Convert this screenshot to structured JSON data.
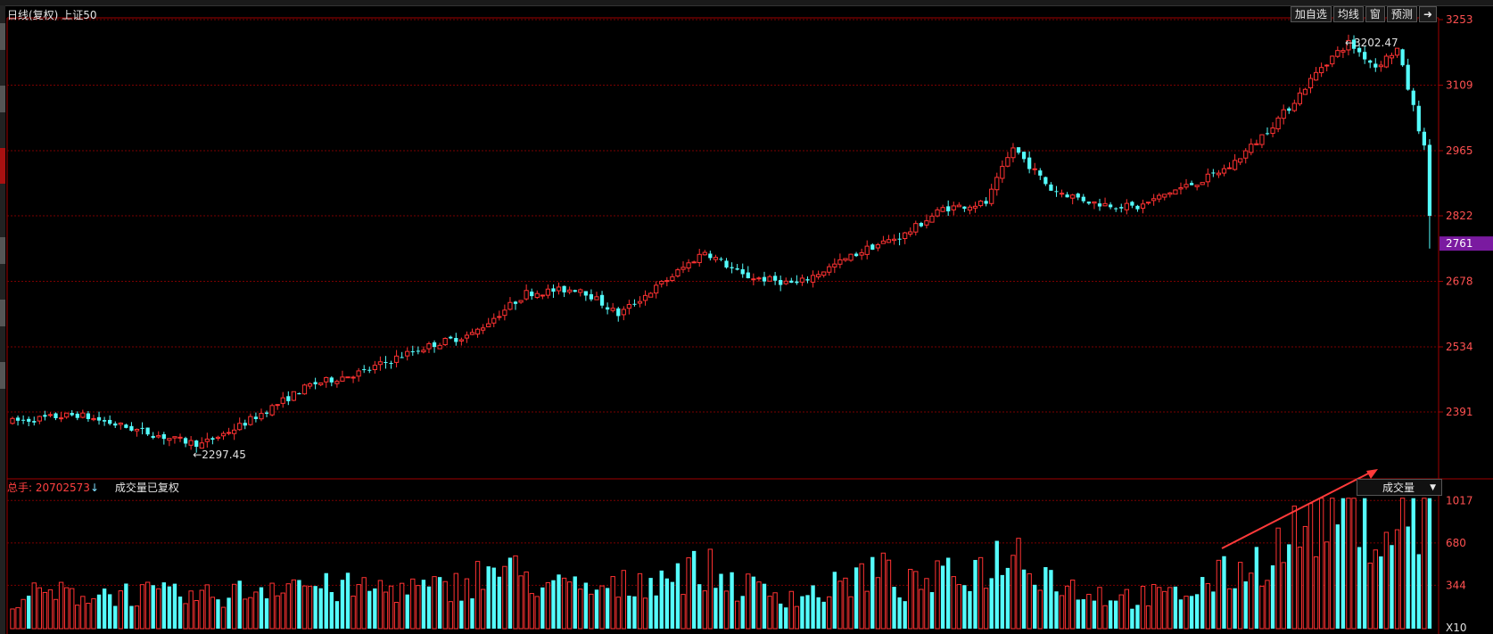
{
  "header": {
    "period": "日线(复权)",
    "symbol": "上证50"
  },
  "toolbar": [
    {
      "label": "加自选"
    },
    {
      "label": "均线"
    },
    {
      "label": "窗"
    },
    {
      "label": "预测"
    }
  ],
  "colors": {
    "up": "#ff3232",
    "down": "#54fcfc",
    "grid": "#7a0000",
    "axis": "#a00000",
    "price_tag_bg": "#7a1aa0"
  },
  "volume_panel": {
    "total_label": "总手: 20702573",
    "status": "成交量已复权",
    "indicator": "成交量",
    "scale_unit": "X10"
  },
  "chart_data": [
    {
      "type": "candlestick",
      "title": "日线(复权) 上证50",
      "ylim": [
        2248,
        3253
      ],
      "y_ticks": [
        3253,
        3109,
        2965,
        2822,
        2678,
        2534,
        2391
      ],
      "current_price": "2761",
      "annotations": [
        {
          "label": "2297.45",
          "value": 2297.45,
          "at": "low"
        },
        {
          "label": "3202.47",
          "value": 3202.47,
          "at": "high"
        }
      ],
      "anchors": [
        [
          0,
          2370
        ],
        [
          12,
          2385
        ],
        [
          30,
          2330
        ],
        [
          35,
          2320
        ],
        [
          42,
          2360
        ],
        [
          55,
          2450
        ],
        [
          65,
          2480
        ],
        [
          72,
          2515
        ],
        [
          78,
          2540
        ],
        [
          85,
          2562
        ],
        [
          95,
          2652
        ],
        [
          105,
          2662
        ],
        [
          112,
          2605
        ],
        [
          122,
          2690
        ],
        [
          128,
          2744
        ],
        [
          135,
          2690
        ],
        [
          145,
          2672
        ],
        [
          150,
          2702
        ],
        [
          158,
          2750
        ],
        [
          165,
          2781
        ],
        [
          172,
          2838
        ],
        [
          180,
          2850
        ],
        [
          185,
          2972
        ],
        [
          192,
          2880
        ],
        [
          200,
          2850
        ],
        [
          208,
          2840
        ],
        [
          214,
          2874
        ],
        [
          220,
          2900
        ],
        [
          225,
          2930
        ],
        [
          230,
          2985
        ],
        [
          236,
          3060
        ],
        [
          242,
          3150
        ],
        [
          247,
          3202
        ],
        [
          252,
          3150
        ],
        [
          256,
          3188
        ],
        [
          259,
          3060
        ],
        [
          261,
          2970
        ],
        [
          262,
          2790
        ]
      ]
    },
    {
      "type": "bar",
      "title": "成交量",
      "y_ticks": [
        1017,
        680,
        344
      ],
      "ylim": [
        0,
        1040
      ],
      "anchors": [
        [
          0,
          260
        ],
        [
          20,
          285
        ],
        [
          35,
          245
        ],
        [
          45,
          310
        ],
        [
          50,
          395
        ],
        [
          58,
          320
        ],
        [
          70,
          320
        ],
        [
          80,
          310
        ],
        [
          90,
          480
        ],
        [
          100,
          330
        ],
        [
          110,
          300
        ],
        [
          120,
          430
        ],
        [
          128,
          470
        ],
        [
          135,
          330
        ],
        [
          145,
          260
        ],
        [
          150,
          290
        ],
        [
          160,
          470
        ],
        [
          165,
          330
        ],
        [
          175,
          430
        ],
        [
          180,
          500
        ],
        [
          185,
          640
        ],
        [
          195,
          330
        ],
        [
          205,
          250
        ],
        [
          215,
          260
        ],
        [
          222,
          380
        ],
        [
          230,
          520
        ],
        [
          236,
          700
        ],
        [
          240,
          850
        ],
        [
          245,
          980
        ],
        [
          250,
          950
        ],
        [
          253,
          700
        ],
        [
          257,
          900
        ],
        [
          260,
          880
        ],
        [
          262,
          1000
        ]
      ]
    }
  ]
}
